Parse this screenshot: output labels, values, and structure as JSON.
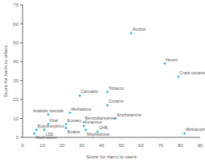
{
  "chart_data": {
    "type": "scatter",
    "xlabel": "Score for harm to users",
    "ylabel": "Score for harm to others",
    "xlim": [
      0,
      90
    ],
    "ylim": [
      0,
      70
    ],
    "xticks": [
      0,
      10,
      20,
      30,
      40,
      50,
      60,
      70,
      80,
      90
    ],
    "yticks": [
      0,
      10,
      20,
      30,
      40,
      50,
      60,
      70
    ],
    "color": "#00a0b8",
    "marker": "plus",
    "grid": false,
    "x": [
      55,
      72,
      79,
      29,
      43,
      43,
      47,
      82,
      24,
      31,
      31,
      32,
      38,
      22,
      22,
      13,
      13,
      11,
      7,
      6
    ],
    "values": [
      55,
      39,
      32,
      22,
      24,
      17,
      10,
      2,
      13,
      8,
      6,
      4,
      3,
      7,
      5,
      12,
      7,
      4,
      4,
      2
    ],
    "annotations": [
      "Alcohol",
      "Heroin",
      "Crack cocaine",
      "Cannabis",
      "Tobacco",
      "Cocaine",
      "Amphetamine",
      "Methamphetamine",
      "Methadone",
      "Benzodiazepines",
      "Ketamine",
      "Mephedrone",
      "GHB",
      "Ecstasy",
      "Butane",
      "Anabolic steroids",
      "Khat",
      "LSD",
      "Buprenorphine",
      "Mushrooms"
    ]
  }
}
